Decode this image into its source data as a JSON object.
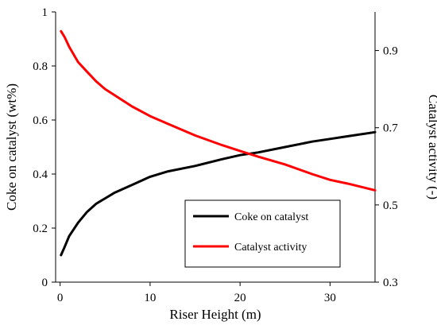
{
  "chart_data": {
    "type": "line",
    "xlabel": "Riser Height (m)",
    "ylabel_left": "Coke on catalyst (wt%)",
    "ylabel_right": "Catalyst activity (-)",
    "xlim": [
      -0.5,
      35
    ],
    "ylim_left": [
      0,
      1
    ],
    "ylim_right": [
      0.3,
      1.0
    ],
    "x_ticks": [
      0,
      10,
      20,
      30
    ],
    "x_tick_labels": [
      "0",
      "10",
      "20",
      "30"
    ],
    "y_left_ticks": [
      0,
      0.2,
      0.4,
      0.6,
      0.8,
      1
    ],
    "y_left_tick_labels": [
      "0",
      "0.2",
      "0.4",
      "0.6",
      "0.8",
      "1"
    ],
    "y_right_ticks": [
      0.3,
      0.5,
      0.7,
      0.9
    ],
    "y_right_tick_labels": [
      "0.3",
      "0.5",
      "0.7",
      "0.9"
    ],
    "grid": false,
    "legend_position": "bottom-right",
    "series": [
      {
        "name": "Coke on catalyst",
        "axis": "left",
        "color": "#000000",
        "x": [
          0.1,
          0.5,
          1,
          2,
          3,
          4,
          5,
          6,
          8,
          10,
          12,
          15,
          18,
          20,
          22,
          25,
          28,
          30,
          32,
          35
        ],
        "y": [
          0.1,
          0.13,
          0.17,
          0.22,
          0.26,
          0.29,
          0.31,
          0.33,
          0.36,
          0.39,
          0.41,
          0.43,
          0.455,
          0.47,
          0.48,
          0.5,
          0.52,
          0.53,
          0.54,
          0.555
        ]
      },
      {
        "name": "Catalyst activity",
        "axis": "right",
        "color": "#ff0000",
        "x": [
          0.1,
          0.5,
          1,
          2,
          3,
          4,
          5,
          6,
          8,
          10,
          12,
          15,
          18,
          20,
          22,
          25,
          28,
          30,
          32,
          35
        ],
        "y": [
          0.95,
          0.935,
          0.91,
          0.87,
          0.845,
          0.82,
          0.8,
          0.785,
          0.755,
          0.73,
          0.71,
          0.68,
          0.655,
          0.64,
          0.625,
          0.605,
          0.58,
          0.565,
          0.555,
          0.538
        ]
      }
    ]
  }
}
